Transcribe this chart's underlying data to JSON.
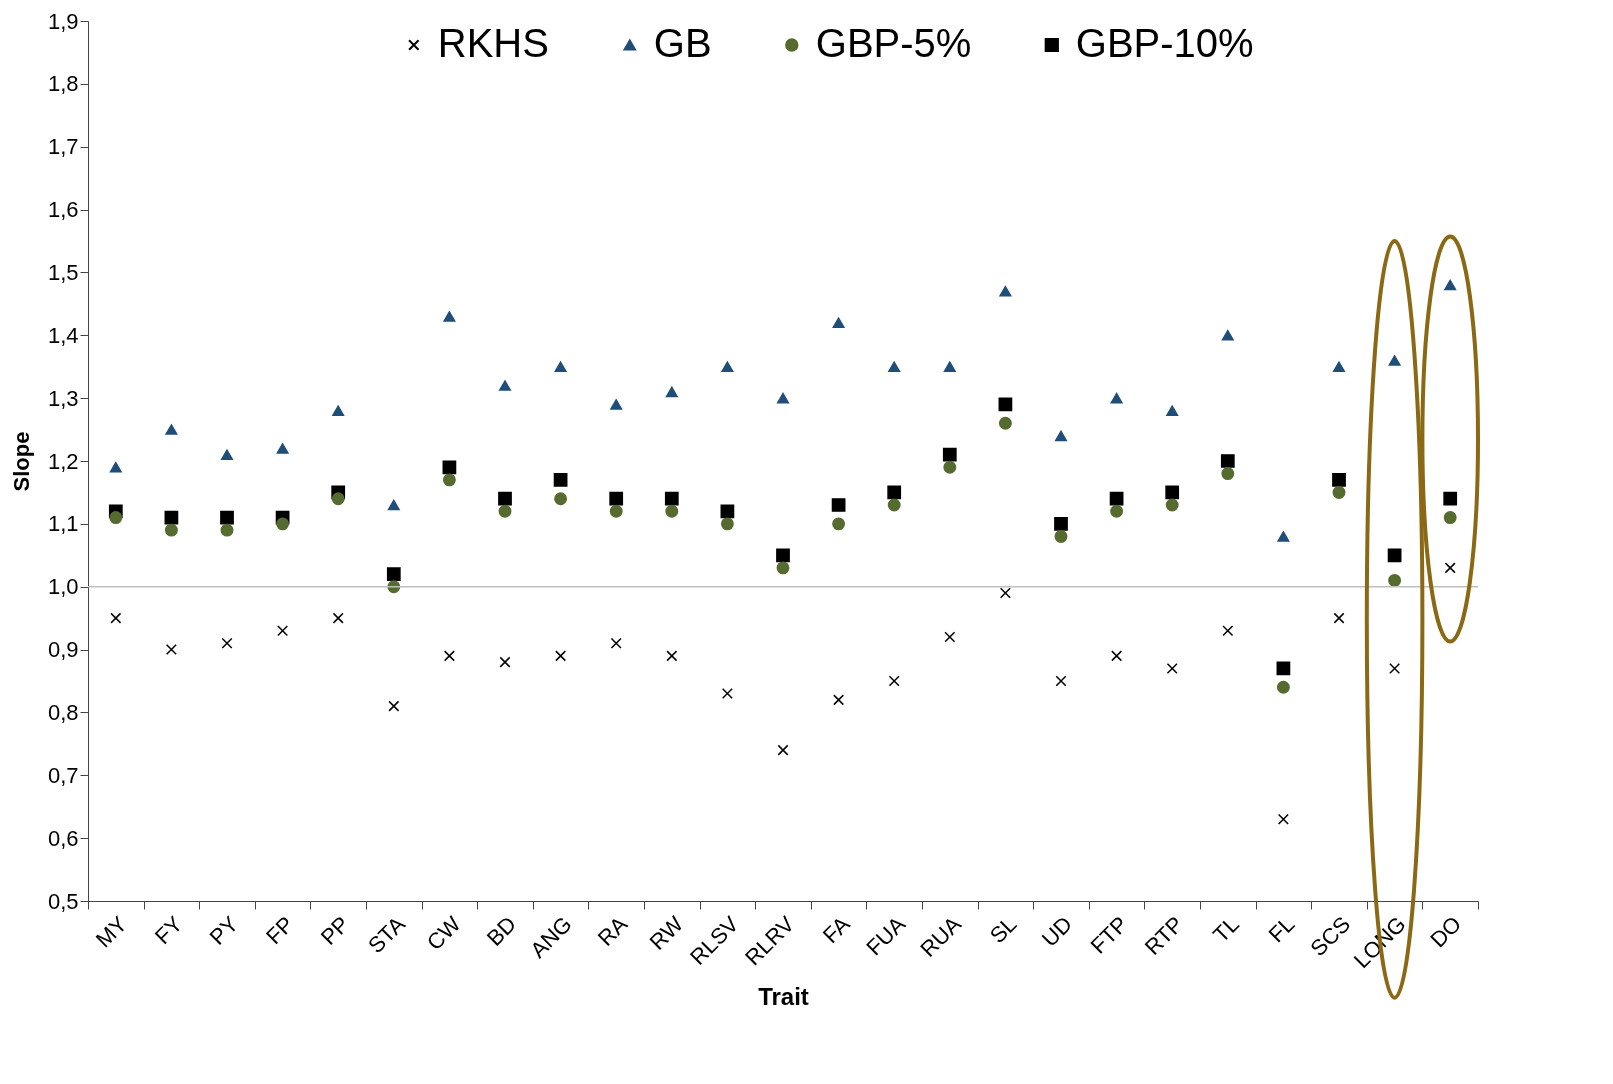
{
  "chart_data": {
    "type": "scatter",
    "xlabel": "Trait",
    "ylabel": "Slope",
    "categories": [
      "MY",
      "FY",
      "PY",
      "FP",
      "PP",
      "STA",
      "CW",
      "BD",
      "ANG",
      "RA",
      "RW",
      "RLSV",
      "RLRV",
      "FA",
      "FUA",
      "RUA",
      "SL",
      "UD",
      "FTP",
      "RTP",
      "TL",
      "FL",
      "SCS",
      "LONG",
      "DO"
    ],
    "series": [
      {
        "name": "RKHS",
        "color": "#000000",
        "marker": "cross",
        "values": [
          0.95,
          0.9,
          0.91,
          0.93,
          0.95,
          0.81,
          0.89,
          0.88,
          0.89,
          0.91,
          0.89,
          0.83,
          0.74,
          0.82,
          0.85,
          0.92,
          0.99,
          0.85,
          0.89,
          0.87,
          0.93,
          0.63,
          0.95,
          0.87,
          1.03
        ]
      },
      {
        "name": "GB",
        "color": "#1f4e79",
        "marker": "triangle",
        "values": [
          1.19,
          1.25,
          1.21,
          1.22,
          1.28,
          1.13,
          1.43,
          1.32,
          1.35,
          1.29,
          1.31,
          1.35,
          1.3,
          1.42,
          1.35,
          1.35,
          1.47,
          1.24,
          1.3,
          1.28,
          1.4,
          1.08,
          1.35,
          1.36,
          1.48
        ]
      },
      {
        "name": "GBP-5%",
        "color": "#556b2f",
        "marker": "circle",
        "values": [
          1.11,
          1.09,
          1.09,
          1.1,
          1.14,
          1.0,
          1.17,
          1.12,
          1.14,
          1.12,
          1.12,
          1.1,
          1.03,
          1.1,
          1.13,
          1.19,
          1.26,
          1.08,
          1.12,
          1.13,
          1.18,
          0.84,
          1.15,
          1.01,
          1.11
        ]
      },
      {
        "name": "GBP-10%",
        "color": "#000000",
        "marker": "square",
        "values": [
          1.12,
          1.11,
          1.11,
          1.11,
          1.15,
          1.02,
          1.19,
          1.14,
          1.17,
          1.14,
          1.14,
          1.12,
          1.05,
          1.13,
          1.15,
          1.21,
          1.29,
          1.1,
          1.14,
          1.15,
          1.2,
          0.87,
          1.17,
          1.05,
          1.14
        ]
      }
    ],
    "ylim": [
      0.5,
      1.9
    ],
    "yticks": [
      {
        "value": 0.5,
        "label": "0,5"
      },
      {
        "value": 0.6,
        "label": "0,6"
      },
      {
        "value": 0.7,
        "label": "0,7"
      },
      {
        "value": 0.8,
        "label": "0,8"
      },
      {
        "value": 0.9,
        "label": "0,9"
      },
      {
        "value": 1.0,
        "label": "1,0"
      },
      {
        "value": 1.1,
        "label": "1,1"
      },
      {
        "value": 1.2,
        "label": "1,2"
      },
      {
        "value": 1.3,
        "label": "1,3"
      },
      {
        "value": 1.4,
        "label": "1,4"
      },
      {
        "value": 1.5,
        "label": "1,5"
      },
      {
        "value": 1.6,
        "label": "1,6"
      },
      {
        "value": 1.7,
        "label": "1,7"
      },
      {
        "value": 1.8,
        "label": "1,8"
      },
      {
        "value": 1.9,
        "label": "1,9"
      }
    ],
    "ref_lines": [
      {
        "axis": "y",
        "value": 1.0,
        "color": "#bfbfbf"
      }
    ],
    "grid": false,
    "legend": "top"
  }
}
